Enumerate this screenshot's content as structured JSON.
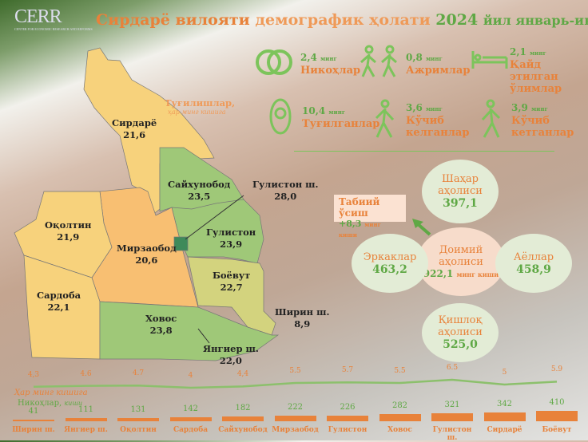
{
  "header": {
    "logo": "CERR",
    "title_part1": "Сирдарё вилояти",
    "title_part2": "демографик ҳолати",
    "title_year": "2024",
    "title_period": "йил январь-июнь"
  },
  "stats": [
    {
      "value": "2,4",
      "unit": "минг",
      "label": "Никоҳлар",
      "icon": "wedding-rings-icon"
    },
    {
      "value": "0,8",
      "unit": "минг",
      "label": "Ажримлар",
      "icon": "two-people-walking-icon"
    },
    {
      "value": "2,1",
      "unit": "минг",
      "label": "Қайд этилган ўлимлар",
      "icon": "bed-icon"
    },
    {
      "value": "10,4",
      "unit": "минг",
      "label": "Туғилганлар",
      "icon": "baby-icon"
    },
    {
      "value": "3,6",
      "unit": "минг",
      "label": "Кўчиб келганлар",
      "icon": "walking-person-icon"
    },
    {
      "value": "3,9",
      "unit": "минг",
      "label": "Кўчиб кетганлар",
      "icon": "walking-person-left-icon"
    }
  ],
  "map": {
    "legend_title": "Туғилишлар,",
    "legend_sub": "ҳар минг кишига",
    "regions": [
      {
        "name": "Сирдарё",
        "value": "21,6",
        "color": "#f7d27c"
      },
      {
        "name": "Сайхунобод",
        "value": "23,5",
        "color": "#9fc878"
      },
      {
        "name": "Гулистон ш.",
        "value": "28,0",
        "color": "#3e8a5a"
      },
      {
        "name": "Оқолтин",
        "value": "21,9",
        "color": "#f7d27c"
      },
      {
        "name": "Мирзаобод",
        "value": "20,6",
        "color": "#f8bf72"
      },
      {
        "name": "Гулистон",
        "value": "23,9",
        "color": "#9fc878"
      },
      {
        "name": "Боёвут",
        "value": "22,7",
        "color": "#d3d37e"
      },
      {
        "name": "Сардоба",
        "value": "22,1",
        "color": "#f7d27c"
      },
      {
        "name": "Ховос",
        "value": "23,8",
        "color": "#9fc878"
      },
      {
        "name": "Ширин ш.",
        "value": "8,9",
        "color": "#ffffff"
      },
      {
        "name": "Янгиер ш.",
        "value": "22,0",
        "color": "#ffffff"
      }
    ]
  },
  "population": {
    "natural_growth_label": "Табиий ўсиш",
    "natural_growth_value": "+8,3",
    "natural_growth_unit": "минг киши",
    "total_label": "Доимий аҳолиси",
    "total_value": "922,1",
    "total_unit": "минг киши",
    "urban_label": "Шаҳар аҳолиси",
    "urban_value": "397,1",
    "rural_label": "Қишлоқ аҳолиси",
    "rural_value": "525,0",
    "men_label": "Эркаклар",
    "men_value": "463,2",
    "women_label": "Аёллар",
    "women_value": "458,9"
  },
  "chart_data": {
    "type": "bar",
    "categories": [
      "Ширин ш.",
      "Янгиер ш.",
      "Оқолтин",
      "Сардоба",
      "Сайхунобод",
      "Мирзаобод",
      "Гулистон",
      "Ховос",
      "Гулистон ш.",
      "Сирдарё",
      "Боёвут"
    ],
    "series": [
      {
        "name": "Никоҳлар, киши",
        "type": "bar",
        "values": [
          41,
          111,
          131,
          142,
          182,
          222,
          226,
          282,
          321,
          342,
          410
        ],
        "color": "#e8823a"
      },
      {
        "name": "Ҳар минг кишига",
        "type": "line",
        "values": [
          4.3,
          4.6,
          4.7,
          4,
          4.4,
          5.5,
          5.7,
          5.5,
          6.5,
          5,
          5.9
        ],
        "labels": [
          "4,3",
          "4.6",
          "4.7",
          "4",
          "4,4",
          "5.5",
          "5.7",
          "5.5",
          "6.5",
          "5",
          "5.9"
        ],
        "color": "#8cc06c"
      }
    ],
    "rate_label": "Ҳар минг кишига",
    "count_label": "Никоҳлар,",
    "count_unit": "киши"
  }
}
